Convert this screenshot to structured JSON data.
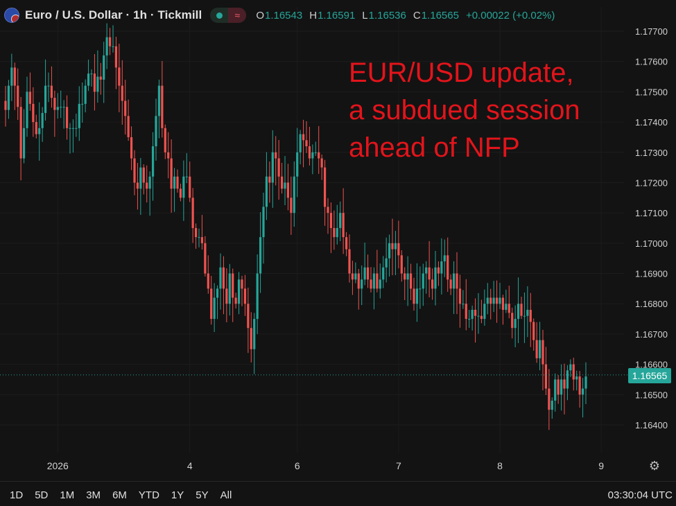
{
  "header": {
    "symbol_title": "Euro / U.S. Dollar · 1h · Tickmill",
    "ohlc": {
      "open_label": "O",
      "open": "1.16543",
      "high_label": "H",
      "high": "1.16591",
      "low_label": "L",
      "low": "1.16536",
      "close_label": "C",
      "close": "1.16565",
      "change": "+0.00022 (+0.02%)"
    }
  },
  "annotation": {
    "line1": "EUR/USD update,",
    "line2": "a subdued session",
    "line3": "ahead of NFP"
  },
  "current_price": "1.16565",
  "timeframes": [
    "1D",
    "5D",
    "1M",
    "3M",
    "6M",
    "YTD",
    "1Y",
    "5Y",
    "All"
  ],
  "clock": "03:30:04 UTC",
  "icons": {
    "settings": "gear-icon",
    "flag": "eur-usd-flag-icon",
    "indicator_dot": "status-dot-icon",
    "indicator_wave": "wave-icon"
  },
  "colors": {
    "up": "#26a69a",
    "down": "#ef5350",
    "annotation": "#e3141b",
    "background": "#131313"
  },
  "chart_data": {
    "type": "candlestick",
    "ylim": [
      1.1633,
      1.1775
    ],
    "y_ticks": [
      "1.17700",
      "1.17600",
      "1.17500",
      "1.17400",
      "1.17300",
      "1.17200",
      "1.17100",
      "1.17000",
      "1.16900",
      "1.16800",
      "1.16700",
      "1.16600",
      "1.16500",
      "1.16400"
    ],
    "x_ticks": [
      {
        "label": "2026",
        "index": 17
      },
      {
        "label": "4",
        "index": 60
      },
      {
        "label": "6",
        "index": 95
      },
      {
        "label": "7",
        "index": 128
      },
      {
        "label": "8",
        "index": 161
      },
      {
        "label": "9",
        "index": 194
      }
    ],
    "last_price": 1.16565,
    "grid": true,
    "closes": [
      1.1744,
      1.1752,
      1.1758,
      1.1752,
      1.1745,
      1.1728,
      1.1738,
      1.175,
      1.1746,
      1.174,
      1.1736,
      1.1738,
      1.1743,
      1.1752,
      1.1752,
      1.1748,
      1.1744,
      1.1745,
      1.1745,
      1.1745,
      1.1738,
      1.1738,
      1.1738,
      1.1738,
      1.1746,
      1.1746,
      1.1752,
      1.1756,
      1.1756,
      1.175,
      1.1755,
      1.1754,
      1.1762,
      1.1768,
      1.1765,
      1.1765,
      1.1758,
      1.1752,
      1.1747,
      1.1742,
      1.1735,
      1.1728,
      1.172,
      1.1718,
      1.1725,
      1.172,
      1.1718,
      1.1722,
      1.1732,
      1.1742,
      1.1752,
      1.1738,
      1.173,
      1.1728,
      1.1718,
      1.1722,
      1.1718,
      1.1715,
      1.1722,
      1.1722,
      1.1715,
      1.1705,
      1.1702,
      1.1702,
      1.17,
      1.169,
      1.1685,
      1.1675,
      1.1682,
      1.1685,
      1.1692,
      1.1685,
      1.168,
      1.169,
      1.1682,
      1.168,
      1.1688,
      1.1685,
      1.168,
      1.1672,
      1.1665,
      1.1675,
      1.169,
      1.1702,
      1.1712,
      1.1722,
      1.172,
      1.173,
      1.1728,
      1.1722,
      1.1718,
      1.172,
      1.1715,
      1.171,
      1.1722,
      1.173,
      1.1736,
      1.1734,
      1.1732,
      1.1728,
      1.173,
      1.173,
      1.1728,
      1.1725,
      1.1712,
      1.171,
      1.1705,
      1.1702,
      1.1705,
      1.171,
      1.1702,
      1.1698,
      1.169,
      1.1688,
      1.169,
      1.1685,
      1.1688,
      1.1692,
      1.1688,
      1.1685,
      1.169,
      1.1685,
      1.1688,
      1.1692,
      1.1695,
      1.17,
      1.1698,
      1.17,
      1.1696,
      1.169,
      1.1688,
      1.169,
      1.1685,
      1.168,
      1.1685,
      1.1685,
      1.169,
      1.1692,
      1.1688,
      1.1685,
      1.1692,
      1.169,
      1.1694,
      1.1696,
      1.1688,
      1.1685,
      1.169,
      1.1685,
      1.168,
      1.168,
      1.1675,
      1.1675,
      1.1678,
      1.1676,
      1.1676,
      1.1675,
      1.168,
      1.1682,
      1.168,
      1.1682,
      1.168,
      1.1682,
      1.1678,
      1.168,
      1.1677,
      1.1672,
      1.1675,
      1.168,
      1.1676,
      1.1676,
      1.1678,
      1.1674,
      1.1668,
      1.1662,
      1.1668,
      1.166,
      1.1652,
      1.1645,
      1.1648,
      1.1655,
      1.165,
      1.1655,
      1.1652,
      1.1658,
      1.166,
      1.1655,
      1.1656,
      1.165,
      1.1652,
      1.1656
    ]
  }
}
